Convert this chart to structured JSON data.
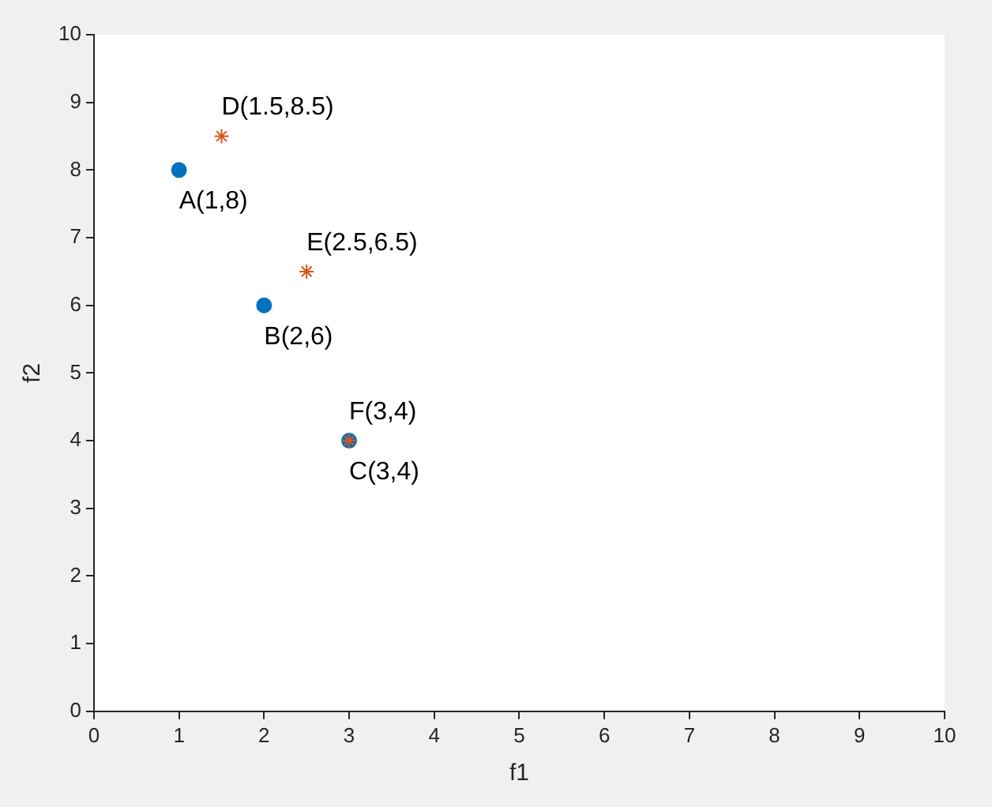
{
  "chart_data": {
    "type": "scatter",
    "xlabel": "f1",
    "ylabel": "f2",
    "xlim": [
      0,
      10
    ],
    "ylim": [
      0,
      10
    ],
    "xticks": [
      0,
      1,
      2,
      3,
      4,
      5,
      6,
      7,
      8,
      9,
      10
    ],
    "yticks": [
      0,
      1,
      2,
      3,
      4,
      5,
      6,
      7,
      8,
      9,
      10
    ],
    "grid": false,
    "legend": false,
    "series": [
      {
        "color": "#0072bd",
        "marker": "circle",
        "x": [
          1,
          2,
          3
        ],
        "values": [
          8,
          6,
          4
        ],
        "value_labels": [
          "A(1,8)",
          "B(2,6)",
          "C(3,4)"
        ]
      },
      {
        "color": "#d95319",
        "marker": "cross",
        "x": [
          1.5,
          2.5,
          3
        ],
        "values": [
          8.5,
          6.5,
          4
        ],
        "value_labels": [
          "D(1.5,8.5)",
          "E(2.5,6.5)",
          "F(3,4)"
        ]
      }
    ]
  }
}
